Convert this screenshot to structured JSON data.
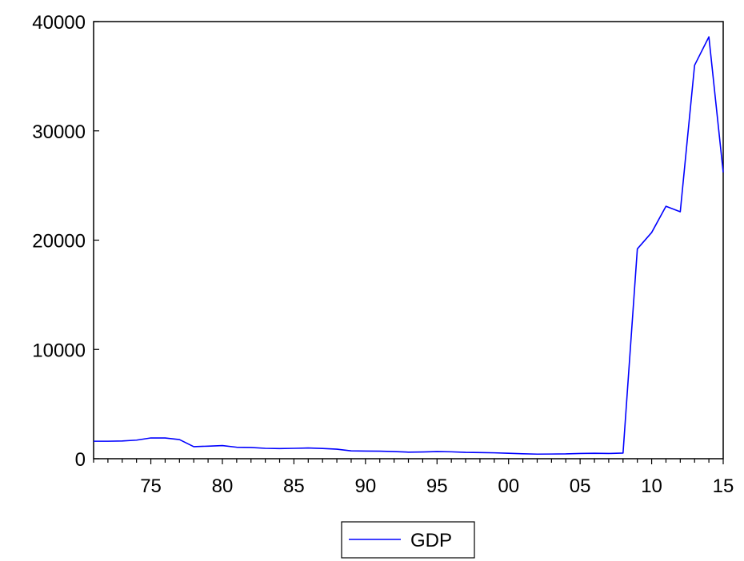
{
  "chart_data": {
    "type": "line",
    "title": "",
    "xlabel": "",
    "ylabel": "",
    "xlim": [
      1971,
      2015
    ],
    "ylim": [
      0,
      40000
    ],
    "yticks": [
      0,
      10000,
      20000,
      30000,
      40000
    ],
    "ytick_labels": [
      "0",
      "10000",
      "20000",
      "30000",
      "40000"
    ],
    "xticks": [
      1975,
      1980,
      1985,
      1990,
      1995,
      2000,
      2005,
      2010,
      2015
    ],
    "xtick_labels": [
      "75",
      "80",
      "85",
      "90",
      "95",
      "00",
      "05",
      "10",
      "15"
    ],
    "grid": false,
    "legend": "bottom-center",
    "series": [
      {
        "name": "GDP",
        "color": "#0000ff",
        "x": [
          1971,
          1972,
          1973,
          1974,
          1975,
          1976,
          1977,
          1978,
          1979,
          1980,
          1981,
          1982,
          1983,
          1984,
          1985,
          1986,
          1987,
          1988,
          1989,
          1990,
          1991,
          1992,
          1993,
          1994,
          1995,
          1996,
          1997,
          1998,
          1999,
          2000,
          2001,
          2002,
          2003,
          2004,
          2005,
          2006,
          2007,
          2008,
          2009,
          2010,
          2011,
          2012,
          2013,
          2014,
          2015
        ],
        "values": [
          1600,
          1600,
          1620,
          1700,
          1900,
          1900,
          1750,
          1100,
          1150,
          1200,
          1050,
          1030,
          950,
          930,
          950,
          980,
          940,
          870,
          720,
          700,
          690,
          650,
          600,
          620,
          650,
          630,
          580,
          560,
          540,
          500,
          450,
          420,
          430,
          440,
          480,
          500,
          480,
          520,
          19200,
          20700,
          23100,
          22600,
          36000,
          38600,
          26200
        ]
      }
    ]
  }
}
